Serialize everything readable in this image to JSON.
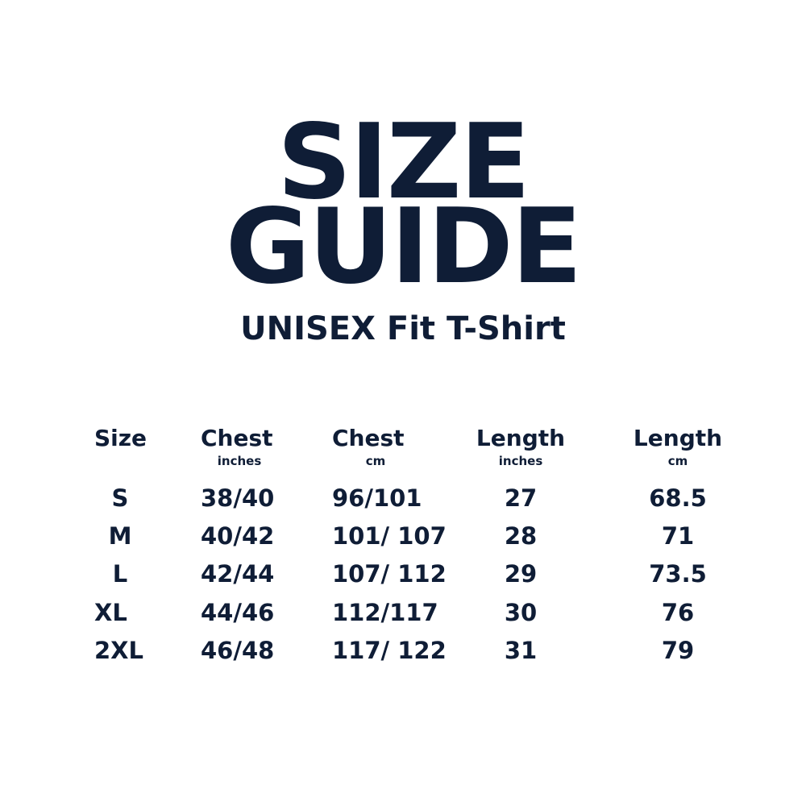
{
  "title_line1": "SIZE",
  "title_line2": "GUIDE",
  "subtitle": "UNISEX Fit T-Shirt",
  "text_color": "#0f1d36",
  "table": {
    "headers": [
      {
        "label": "Size",
        "unit": ""
      },
      {
        "label": "Chest",
        "unit": "inches"
      },
      {
        "label": "Chest",
        "unit": "cm"
      },
      {
        "label": "Length",
        "unit": "inches"
      },
      {
        "label": "Length",
        "unit": "cm"
      }
    ],
    "rows": [
      [
        "S",
        "38/40",
        "96/101",
        "27",
        "68.5"
      ],
      [
        "M",
        "40/42",
        "101/ 107",
        "28",
        "71"
      ],
      [
        "L",
        "42/44",
        "107/ 112",
        "29",
        "73.5"
      ],
      [
        "XL",
        "44/46",
        "112/117",
        "30",
        "76"
      ],
      [
        "2XL",
        "46/48",
        "117/ 122",
        "31",
        "79"
      ]
    ]
  }
}
